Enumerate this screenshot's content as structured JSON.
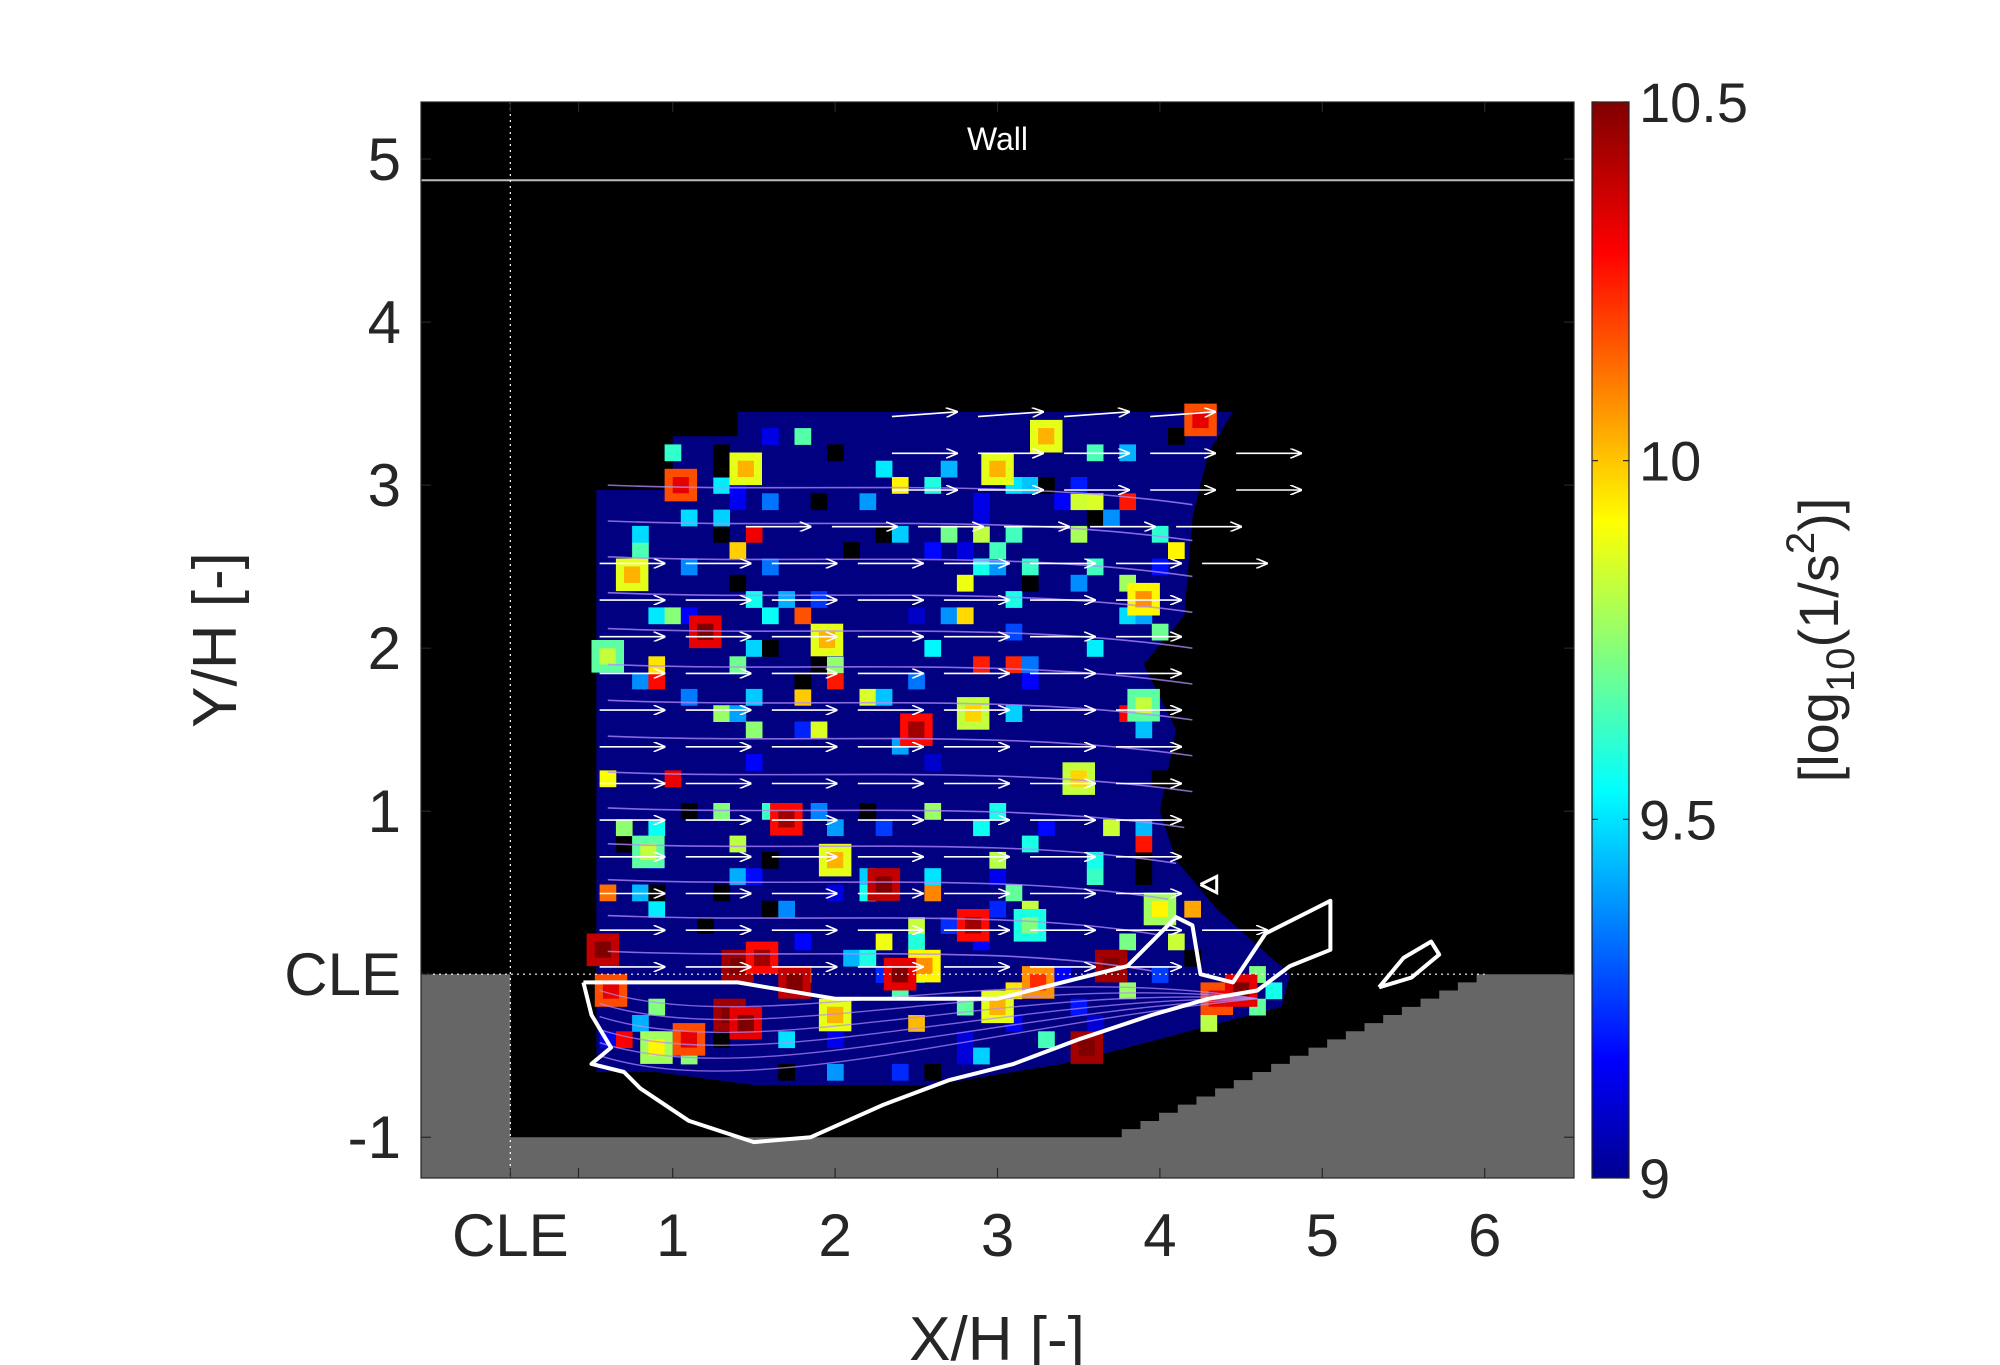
{
  "chart_data": {
    "type": "heatmap",
    "title": "",
    "xlabel": "X/H [-]",
    "ylabel": "Y/H [-]",
    "xlim": [
      -0.55,
      6.55
    ],
    "ylim": [
      -1.25,
      5.35
    ],
    "x_ticks": [
      {
        "value": 0,
        "label": "CLE"
      },
      {
        "value": 1,
        "label": "1"
      },
      {
        "value": 2,
        "label": "2"
      },
      {
        "value": 3,
        "label": "3"
      },
      {
        "value": 4,
        "label": "4"
      },
      {
        "value": 5,
        "label": "5"
      },
      {
        "value": 6,
        "label": "6"
      }
    ],
    "y_ticks": [
      {
        "value": -1,
        "label": "-1"
      },
      {
        "value": 0,
        "label": "CLE"
      },
      {
        "value": 1,
        "label": "1"
      },
      {
        "value": 2,
        "label": "2"
      },
      {
        "value": 3,
        "label": "3"
      },
      {
        "value": 4,
        "label": "4"
      },
      {
        "value": 5,
        "label": "5"
      }
    ],
    "wall": {
      "y": 4.87,
      "label": "Wall"
    },
    "colorbar": {
      "label_base": "[log",
      "label_sub": "10",
      "label_mid": "(1/s",
      "label_sup": "2",
      "label_end": ")]",
      "min": 9,
      "max": 10.5,
      "ticks": [
        {
          "value": 9,
          "label": "9"
        },
        {
          "value": 9.5,
          "label": "9.5"
        },
        {
          "value": 10,
          "label": "10"
        },
        {
          "value": 10.5,
          "label": "10.5"
        }
      ],
      "colormap": "jet"
    },
    "background_value": 9,
    "field_region": [
      [
        0.53,
        2.97
      ],
      [
        1.0,
        2.97
      ],
      [
        1.0,
        3.3
      ],
      [
        1.4,
        3.3
      ],
      [
        1.4,
        3.45
      ],
      [
        4.45,
        3.45
      ],
      [
        4.3,
        3.2
      ],
      [
        4.2,
        2.8
      ],
      [
        4.15,
        2.2
      ],
      [
        3.9,
        1.9
      ],
      [
        4.1,
        1.5
      ],
      [
        4.0,
        1.0
      ],
      [
        4.1,
        0.7
      ],
      [
        4.35,
        0.4
      ],
      [
        4.8,
        0.0
      ],
      [
        4.75,
        -0.2
      ],
      [
        3.8,
        -0.45
      ],
      [
        3.4,
        -0.55
      ],
      [
        2.6,
        -0.68
      ],
      [
        1.5,
        -0.68
      ],
      [
        0.9,
        -0.6
      ],
      [
        0.53,
        -0.6
      ]
    ],
    "hotspots": [
      {
        "x": 0.57,
        "y": 0.15,
        "v": 10.4
      },
      {
        "x": 0.62,
        "y": -0.1,
        "v": 10.2
      },
      {
        "x": 1.4,
        "y": 0.05,
        "v": 10.45
      },
      {
        "x": 1.55,
        "y": 0.1,
        "v": 10.3
      },
      {
        "x": 1.35,
        "y": -0.25,
        "v": 10.45
      },
      {
        "x": 1.45,
        "y": -0.3,
        "v": 10.35
      },
      {
        "x": 2.55,
        "y": 0.05,
        "v": 9.95
      },
      {
        "x": 2.4,
        "y": 0.0,
        "v": 10.35
      },
      {
        "x": 3.25,
        "y": -0.05,
        "v": 10.1
      },
      {
        "x": 3.55,
        "y": -0.45,
        "v": 10.45
      },
      {
        "x": 3.7,
        "y": 0.05,
        "v": 10.45
      },
      {
        "x": 4.35,
        "y": -0.15,
        "v": 10.2
      },
      {
        "x": 1.7,
        "y": 0.95,
        "v": 10.3
      },
      {
        "x": 2.5,
        "y": 1.5,
        "v": 10.3
      },
      {
        "x": 2.3,
        "y": 0.55,
        "v": 10.4
      },
      {
        "x": 1.2,
        "y": 2.1,
        "v": 10.35
      },
      {
        "x": 1.05,
        "y": 3.0,
        "v": 10.2
      },
      {
        "x": 4.25,
        "y": 3.4,
        "v": 10.2
      },
      {
        "x": 3.0,
        "y": 3.1,
        "v": 9.9
      },
      {
        "x": 3.9,
        "y": 2.3,
        "v": 9.95
      },
      {
        "x": 0.75,
        "y": 2.45,
        "v": 9.9
      },
      {
        "x": 1.95,
        "y": 2.05,
        "v": 9.9
      },
      {
        "x": 3.5,
        "y": 1.2,
        "v": 9.85
      },
      {
        "x": 0.85,
        "y": 0.75,
        "v": 9.7
      },
      {
        "x": 1.45,
        "y": 3.1,
        "v": 9.9
      },
      {
        "x": 3.3,
        "y": 3.3,
        "v": 9.9
      },
      {
        "x": 4.0,
        "y": 0.4,
        "v": 9.8
      },
      {
        "x": 2.85,
        "y": 1.6,
        "v": 9.85
      },
      {
        "x": 3.0,
        "y": -0.2,
        "v": 9.9
      },
      {
        "x": 2.0,
        "y": -0.25,
        "v": 9.9
      },
      {
        "x": 1.1,
        "y": -0.4,
        "v": 10.2
      },
      {
        "x": 0.9,
        "y": -0.45,
        "v": 9.8
      },
      {
        "x": 3.9,
        "y": 1.65,
        "v": 9.7
      },
      {
        "x": 2.0,
        "y": 0.7,
        "v": 9.9
      },
      {
        "x": 0.6,
        "y": 1.95,
        "v": 9.7
      },
      {
        "x": 3.2,
        "y": 0.3,
        "v": 9.6
      },
      {
        "x": 1.75,
        "y": -0.05,
        "v": 10.4
      },
      {
        "x": 2.85,
        "y": 0.3,
        "v": 10.3
      },
      {
        "x": 4.5,
        "y": -0.1,
        "v": 10.35
      }
    ]
  }
}
